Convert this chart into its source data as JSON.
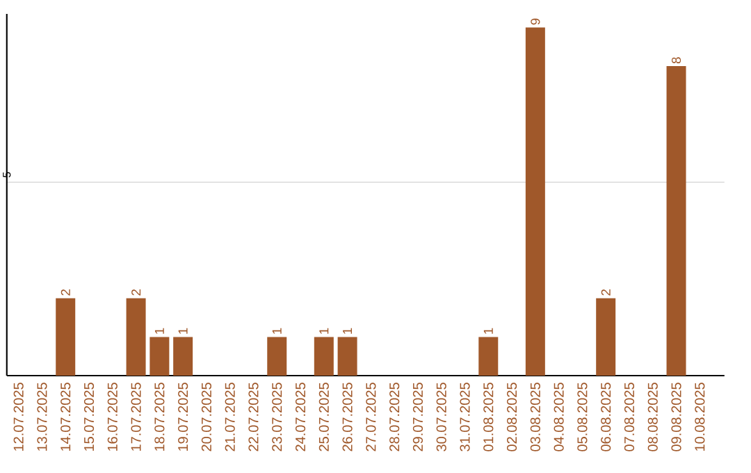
{
  "chart_data": {
    "type": "bar",
    "categories": [
      "12.07.2025",
      "13.07.2025",
      "14.07.2025",
      "15.07.2025",
      "16.07.2025",
      "17.07.2025",
      "18.07.2025",
      "19.07.2025",
      "20.07.2025",
      "21.07.2025",
      "22.07.2025",
      "23.07.2025",
      "24.07.2025",
      "25.07.2025",
      "26.07.2025",
      "27.07.2025",
      "28.07.2025",
      "29.07.2025",
      "30.07.2025",
      "31.07.2025",
      "01.08.2025",
      "02.08.2025",
      "03.08.2025",
      "04.08.2025",
      "05.08.2025",
      "06.08.2025",
      "07.08.2025",
      "08.08.2025",
      "09.08.2025",
      "10.08.2025"
    ],
    "values": [
      0,
      0,
      2,
      0,
      0,
      2,
      1,
      1,
      0,
      0,
      0,
      1,
      0,
      1,
      1,
      0,
      0,
      0,
      0,
      0,
      1,
      0,
      9,
      0,
      0,
      2,
      0,
      0,
      8,
      0
    ],
    "value_labels": [
      null,
      null,
      "2",
      null,
      null,
      "2",
      "1",
      "1",
      null,
      null,
      null,
      "1",
      null,
      "1",
      "1",
      null,
      null,
      null,
      null,
      null,
      "1",
      null,
      "9",
      null,
      null,
      "2",
      null,
      null,
      "8",
      null
    ],
    "color": "#a0582a",
    "ylim": [
      0,
      9.35
    ],
    "yticks": [
      5
    ],
    "grid": "y"
  }
}
